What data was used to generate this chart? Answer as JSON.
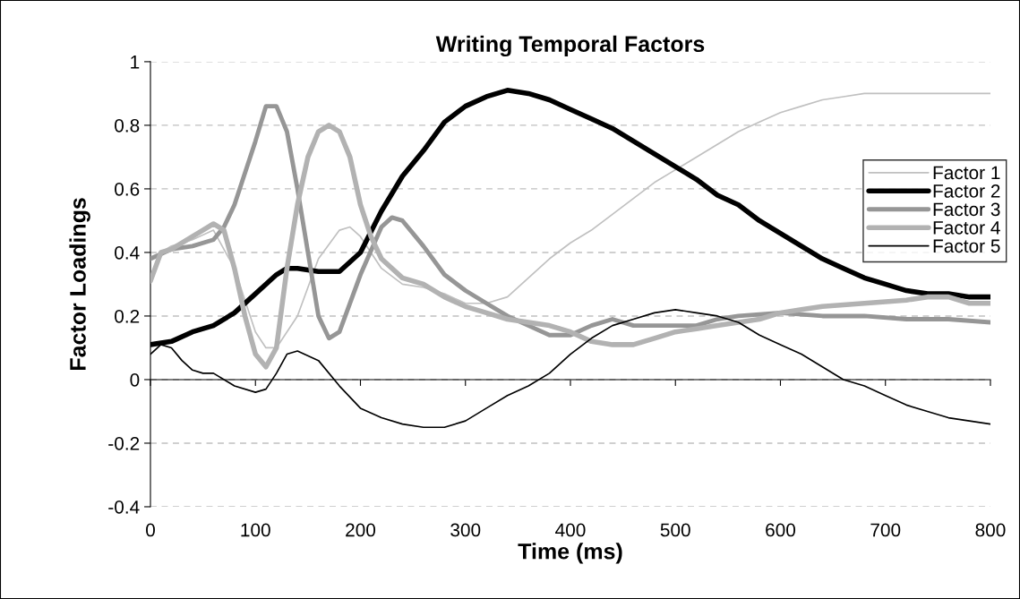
{
  "chart_data": {
    "type": "line",
    "title": "Writing Temporal Factors",
    "xlabel": "Time (ms)",
    "ylabel": "Factor Loadings",
    "xlim": [
      0,
      800
    ],
    "xticks": [
      0,
      100,
      200,
      300,
      400,
      500,
      600,
      700,
      800
    ],
    "ylim": [
      -0.4,
      1
    ],
    "yticks": [
      -0.4,
      -0.2,
      0,
      0.2,
      0.4,
      0.6,
      0.8,
      1
    ],
    "grid": "y",
    "legend": "right",
    "marker": "none",
    "line_style": "solid",
    "series": [
      {
        "name": "Factor 1",
        "color": "#c0c0c0",
        "x": [
          0,
          20,
          40,
          60,
          80,
          100,
          110,
          120,
          140,
          160,
          180,
          190,
          200,
          220,
          240,
          260,
          280,
          300,
          320,
          340,
          360,
          380,
          400,
          420,
          440,
          460,
          480,
          500,
          520,
          540,
          560,
          580,
          600,
          620,
          640,
          660,
          680,
          700,
          800
        ],
        "values": [
          0.38,
          0.42,
          0.44,
          0.47,
          0.35,
          0.15,
          0.1,
          0.1,
          0.2,
          0.38,
          0.47,
          0.48,
          0.45,
          0.35,
          0.3,
          0.29,
          0.27,
          0.24,
          0.24,
          0.26,
          0.32,
          0.38,
          0.43,
          0.47,
          0.52,
          0.57,
          0.62,
          0.66,
          0.7,
          0.74,
          0.78,
          0.81,
          0.84,
          0.86,
          0.88,
          0.89,
          0.9,
          0.9,
          0.9
        ]
      },
      {
        "name": "Factor 2",
        "color": "#000000",
        "x": [
          0,
          20,
          40,
          60,
          80,
          100,
          120,
          130,
          140,
          160,
          180,
          200,
          220,
          240,
          260,
          280,
          300,
          320,
          340,
          360,
          380,
          400,
          420,
          440,
          460,
          480,
          500,
          520,
          540,
          560,
          580,
          600,
          620,
          640,
          660,
          680,
          700,
          720,
          740,
          760,
          780,
          800
        ],
        "values": [
          0.11,
          0.12,
          0.15,
          0.17,
          0.21,
          0.27,
          0.33,
          0.35,
          0.35,
          0.34,
          0.34,
          0.4,
          0.53,
          0.64,
          0.72,
          0.81,
          0.86,
          0.89,
          0.91,
          0.9,
          0.88,
          0.85,
          0.82,
          0.79,
          0.75,
          0.71,
          0.67,
          0.63,
          0.58,
          0.55,
          0.5,
          0.46,
          0.42,
          0.38,
          0.35,
          0.32,
          0.3,
          0.28,
          0.27,
          0.27,
          0.26,
          0.26
        ]
      },
      {
        "name": "Factor 3",
        "color": "#969696",
        "x": [
          0,
          20,
          40,
          60,
          70,
          80,
          100,
          110,
          120,
          130,
          140,
          150,
          160,
          170,
          180,
          200,
          220,
          230,
          240,
          260,
          280,
          300,
          320,
          340,
          360,
          380,
          400,
          420,
          440,
          460,
          480,
          500,
          520,
          540,
          560,
          600,
          640,
          680,
          720,
          760,
          800
        ],
        "values": [
          0.38,
          0.41,
          0.42,
          0.44,
          0.48,
          0.55,
          0.75,
          0.86,
          0.86,
          0.78,
          0.6,
          0.4,
          0.2,
          0.13,
          0.15,
          0.33,
          0.48,
          0.51,
          0.5,
          0.42,
          0.33,
          0.28,
          0.24,
          0.2,
          0.17,
          0.14,
          0.14,
          0.17,
          0.19,
          0.17,
          0.17,
          0.17,
          0.17,
          0.19,
          0.2,
          0.21,
          0.2,
          0.2,
          0.19,
          0.19,
          0.18
        ]
      },
      {
        "name": "Factor 4",
        "color": "#b2b2b2",
        "x": [
          0,
          10,
          20,
          40,
          60,
          70,
          80,
          90,
          100,
          110,
          120,
          130,
          140,
          150,
          160,
          170,
          180,
          190,
          200,
          210,
          220,
          240,
          260,
          280,
          300,
          320,
          340,
          360,
          380,
          400,
          420,
          440,
          460,
          480,
          500,
          520,
          540,
          560,
          580,
          600,
          620,
          640,
          680,
          720,
          740,
          760,
          780,
          800
        ],
        "values": [
          0.31,
          0.4,
          0.41,
          0.45,
          0.49,
          0.47,
          0.35,
          0.2,
          0.08,
          0.04,
          0.1,
          0.35,
          0.55,
          0.7,
          0.78,
          0.8,
          0.78,
          0.7,
          0.55,
          0.45,
          0.38,
          0.32,
          0.3,
          0.26,
          0.23,
          0.21,
          0.19,
          0.18,
          0.17,
          0.15,
          0.12,
          0.11,
          0.11,
          0.13,
          0.15,
          0.16,
          0.17,
          0.18,
          0.19,
          0.21,
          0.22,
          0.23,
          0.24,
          0.25,
          0.26,
          0.26,
          0.24,
          0.24
        ]
      },
      {
        "name": "Factor 5",
        "color": "#000000",
        "x": [
          0,
          10,
          20,
          30,
          40,
          50,
          60,
          80,
          100,
          110,
          120,
          130,
          140,
          160,
          180,
          200,
          220,
          240,
          260,
          280,
          300,
          320,
          340,
          360,
          380,
          400,
          420,
          440,
          460,
          480,
          500,
          520,
          540,
          560,
          580,
          600,
          620,
          640,
          660,
          680,
          700,
          720,
          740,
          760,
          780,
          800
        ],
        "values": [
          0.08,
          0.11,
          0.1,
          0.06,
          0.03,
          0.02,
          0.02,
          -0.02,
          -0.04,
          -0.03,
          0.02,
          0.08,
          0.09,
          0.06,
          -0.02,
          -0.09,
          -0.12,
          -0.14,
          -0.15,
          -0.15,
          -0.13,
          -0.09,
          -0.05,
          -0.02,
          0.02,
          0.08,
          0.13,
          0.17,
          0.19,
          0.21,
          0.22,
          0.21,
          0.2,
          0.18,
          0.14,
          0.11,
          0.08,
          0.04,
          0.0,
          -0.02,
          -0.05,
          -0.08,
          -0.1,
          -0.12,
          -0.13,
          -0.14
        ]
      }
    ]
  }
}
